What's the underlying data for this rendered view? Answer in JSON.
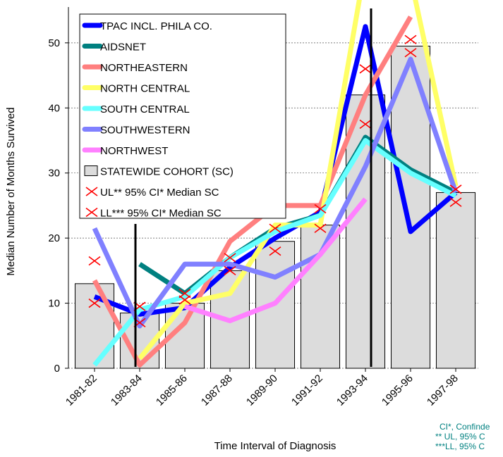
{
  "chart_data": {
    "type": "bar_line",
    "y_label": "Median Number of Months Survived",
    "x_label": "Time Interval of Diagnosis",
    "categories": [
      "1981-82",
      "1983-84",
      "1985-86",
      "1987-88",
      "1989-90",
      "1991-92",
      "1993-94",
      "1995-96",
      "1997-98"
    ],
    "ylim": [
      0,
      55.5
    ],
    "yticks": [
      0,
      10,
      20,
      30,
      40,
      50
    ],
    "grid": true,
    "series": [
      {
        "name": "TPAC INCL. PHILA CO.",
        "color": "#0000ff",
        "style": "line",
        "values": [
          11,
          8.3,
          9.3,
          15.5,
          20,
          24,
          52.5,
          21,
          27
        ]
      },
      {
        "name": "AIDSNET",
        "color": "#008080",
        "style": "line",
        "values": [
          null,
          16,
          11.5,
          17,
          21.5,
          23.5,
          35.5,
          30.5,
          27
        ]
      },
      {
        "name": "NORTHEASTERN",
        "color": "#ff7f7f",
        "style": "line",
        "values": [
          13.5,
          0.5,
          7,
          19.5,
          25,
          25,
          42,
          54,
          null
        ]
      },
      {
        "name": "NORTH CENTRAL",
        "color": "#ffff66",
        "style": "line",
        "values": [
          null,
          1.5,
          10,
          11.5,
          22,
          22,
          62,
          60,
          28
        ]
      },
      {
        "name": "SOUTH CENTRAL",
        "color": "#66ffff",
        "style": "line",
        "values": [
          0.5,
          9,
          11,
          17,
          21,
          23.5,
          35,
          30,
          26.5
        ]
      },
      {
        "name": "SOUTHWESTERN",
        "color": "#8080ff",
        "style": "line",
        "values": [
          21.5,
          6.5,
          16,
          16,
          14,
          17.5,
          31,
          47.5,
          27
        ]
      },
      {
        "name": "NORTHWEST",
        "color": "#ff80ff",
        "style": "line",
        "values": [
          null,
          null,
          9.5,
          7.3,
          10,
          17.5,
          26,
          null,
          null
        ]
      },
      {
        "name": "STATEWIDE COHORT (SC)",
        "color": "#dcdcdc",
        "style": "bar",
        "values": [
          13,
          8.5,
          10,
          15,
          19.5,
          22,
          42,
          49.5,
          27
        ]
      },
      {
        "name": "UL** 95% CI* Median SC",
        "color": "#ff0000",
        "style": "marker",
        "values": [
          16.5,
          9.5,
          11.5,
          17,
          21.5,
          24.5,
          46,
          50.5,
          27.5
        ]
      },
      {
        "name": "LL*** 95% CI* Median SC",
        "color": "#ff0000",
        "style": "marker",
        "values": [
          10,
          7,
          10.5,
          15,
          18,
          21.5,
          37.5,
          48.5,
          25.5
        ]
      }
    ],
    "notes": [
      "CI*, Confinde",
      "** UL, 95% C",
      "***LL, 95% C"
    ]
  }
}
